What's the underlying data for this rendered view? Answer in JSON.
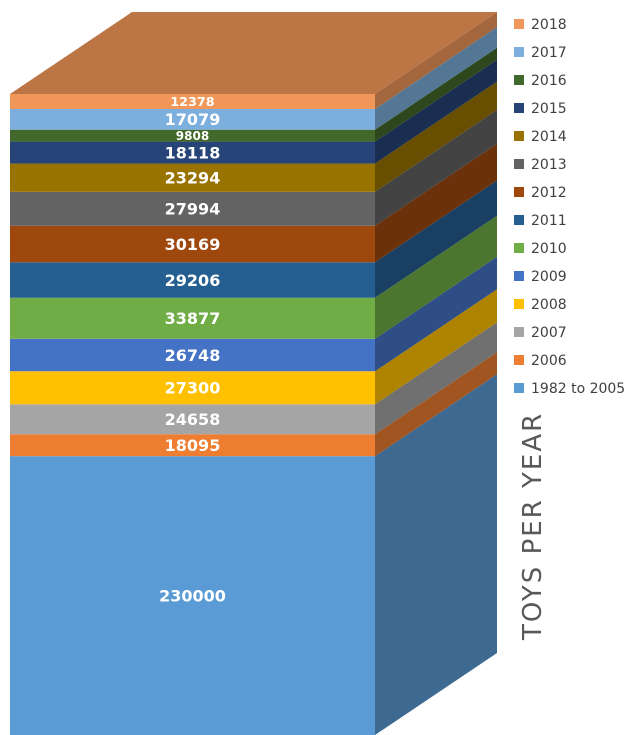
{
  "chart_data": {
    "type": "bar",
    "stacked": true,
    "three_d": true,
    "axis_title": "TOYS PER YEAR",
    "legend_position": "right",
    "series": [
      {
        "name": "1982 to 2005",
        "value": 230000,
        "color": "#5B9BD5"
      },
      {
        "name": "2006",
        "value": 18095,
        "color": "#ED7D31"
      },
      {
        "name": "2007",
        "value": 24658,
        "color": "#A5A5A5"
      },
      {
        "name": "2008",
        "value": 27300,
        "color": "#FFC000"
      },
      {
        "name": "2009",
        "value": 26748,
        "color": "#4472C4"
      },
      {
        "name": "2010",
        "value": 33877,
        "color": "#70AD47"
      },
      {
        "name": "2011",
        "value": 29206,
        "color": "#255E91"
      },
      {
        "name": "2012",
        "value": 30169,
        "color": "#9E480E"
      },
      {
        "name": "2013",
        "value": 27994,
        "color": "#636363"
      },
      {
        "name": "2014",
        "value": 23294,
        "color": "#997300"
      },
      {
        "name": "2015",
        "value": 18118,
        "color": "#264478"
      },
      {
        "name": "2016",
        "value": 9808,
        "color": "#43682B"
      },
      {
        "name": "2017",
        "value": 17079,
        "color": "#7CAFDD"
      },
      {
        "name": "2018",
        "value": 12378,
        "color": "#F1975A"
      }
    ]
  }
}
